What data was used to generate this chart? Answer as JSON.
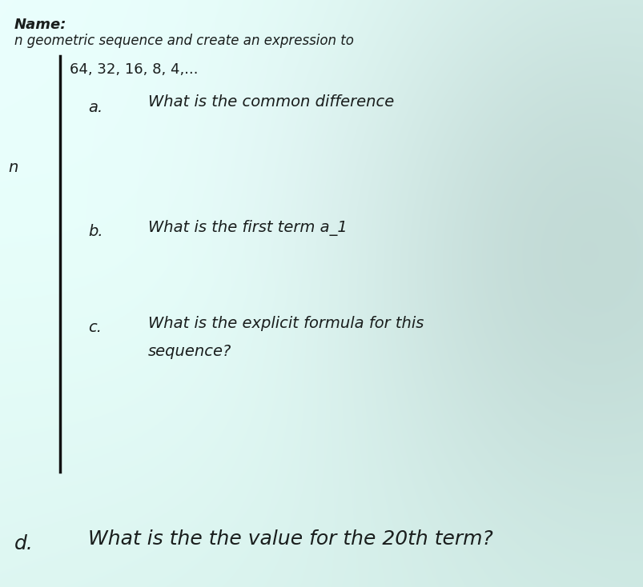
{
  "bg_color_light": "#d8eeea",
  "bg_color_mid": "#c0ddd8",
  "bg_color_dark": "#9dbfbb",
  "text_color": "#2a2e2d",
  "text_color_dark": "#1a1e1d",
  "title_name": "Name:",
  "subtitle": "n geometric sequence and create an expression to",
  "left_n": "n",
  "sequence": "64, 32, 16, 8, 4,...",
  "label_a": "a.",
  "text_a": "What is the common difference",
  "label_b": "b.",
  "text_b": "What is the first term a_1",
  "label_c": "c.",
  "text_c1": "What is the explicit formula for this",
  "text_c2": "sequence?",
  "label_d": "d.",
  "text_d": "What is the the value for the 20th term?",
  "title_fontsize": 13,
  "subtitle_fontsize": 12,
  "seq_fontsize": 13,
  "body_fontsize": 14,
  "label_fontsize": 14,
  "d_fontsize": 18,
  "d_label_fontsize": 18
}
